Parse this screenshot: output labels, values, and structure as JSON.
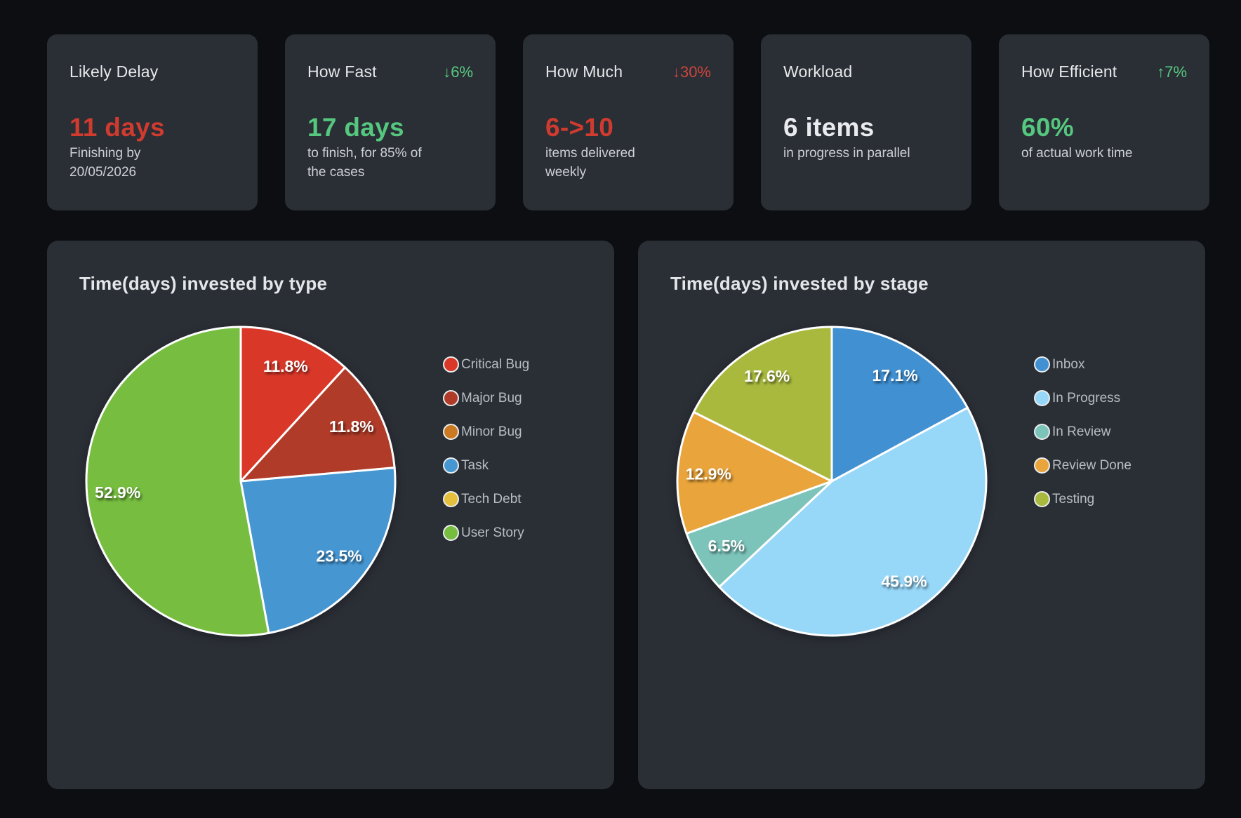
{
  "kpi_cards": [
    {
      "title": "Likely Delay",
      "delta": "",
      "delta_color": "",
      "value": "11 days",
      "value_color": "red",
      "subtitle": "Finishing by\n20/05/2026"
    },
    {
      "title": "How Fast",
      "delta": "↓6%",
      "delta_color": "delta_green",
      "value": "17 days",
      "value_color": "green",
      "subtitle": "to finish, for 85% of\nthe cases"
    },
    {
      "title": "How Much",
      "delta": "↓30%",
      "delta_color": "delta_red",
      "value": "6->10",
      "value_color": "red",
      "subtitle": "items delivered\nweekly"
    },
    {
      "title": "Workload",
      "delta": "",
      "delta_color": "",
      "value": "6 items",
      "value_color": "white",
      "subtitle": "in progress in parallel"
    },
    {
      "title": "How Efficient",
      "delta": "↑7%",
      "delta_color": "delta_green",
      "value": "60%",
      "value_color": "green",
      "subtitle": "of actual work time"
    }
  ],
  "colors": {
    "page_bg": "#0c0e11",
    "card_bg": "#2a2e35",
    "red": "#d03b2f",
    "green": "#55c77e",
    "white": "#e9ebee",
    "delta_green": "#58c981",
    "delta_red": "#cc453c",
    "slice_stroke": "#ffffff",
    "legend_text": "#b7bec1"
  },
  "chart_data": [
    {
      "type": "pie",
      "title": "Time(days) invested by type",
      "unit": "percent",
      "start_angle": "top",
      "direction": "clockwise",
      "legend_position": "right",
      "slices": [
        {
          "label": "Critical Bug",
          "value": 11.8,
          "display": "11.8%",
          "color": "#d93829"
        },
        {
          "label": "Major Bug",
          "value": 11.8,
          "display": "11.8%",
          "color": "#b03b28"
        },
        {
          "label": "Minor Bug",
          "value": 0,
          "display": "",
          "color": "#cb7a23"
        },
        {
          "label": "Task",
          "value": 23.5,
          "display": "23.5%",
          "color": "#4696d2"
        },
        {
          "label": "Tech Debt",
          "value": 0,
          "display": "",
          "color": "#e5c03c"
        },
        {
          "label": "User Story",
          "value": 52.9,
          "display": "52.9%",
          "color": "#76bd40"
        }
      ]
    },
    {
      "type": "pie",
      "title": "Time(days) invested by stage",
      "unit": "percent",
      "start_angle": "top",
      "direction": "clockwise",
      "legend_position": "right",
      "slices": [
        {
          "label": "Inbox",
          "value": 17.1,
          "display": "17.1%",
          "color": "#4090d2"
        },
        {
          "label": "In Progress",
          "value": 45.9,
          "display": "45.9%",
          "color": "#97d7f8"
        },
        {
          "label": "In Review",
          "value": 6.5,
          "display": "6.5%",
          "color": "#7cc3ba"
        },
        {
          "label": "Review Done",
          "value": 12.9,
          "display": "12.9%",
          "color": "#e9a43b"
        },
        {
          "label": "Testing",
          "value": 17.6,
          "display": "17.6%",
          "color": "#a9b93e"
        }
      ]
    }
  ]
}
